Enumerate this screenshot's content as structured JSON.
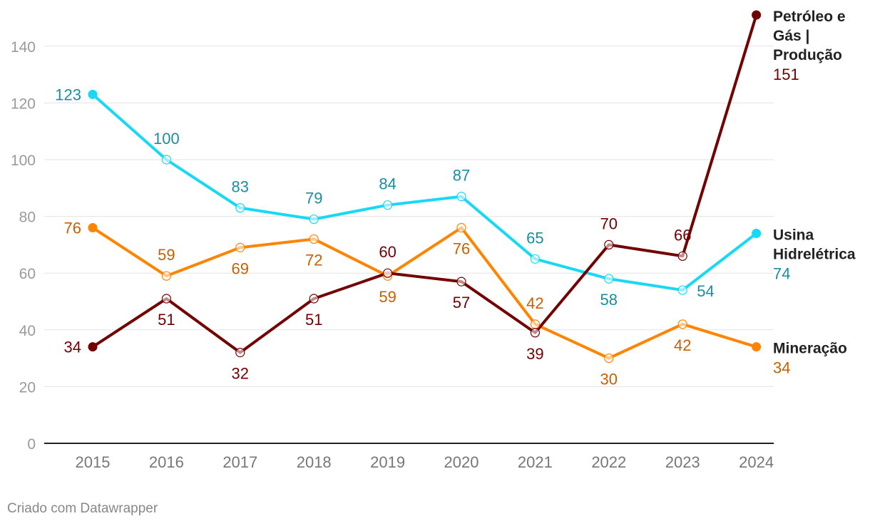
{
  "chart_data": {
    "type": "line",
    "title": "",
    "xlabel": "",
    "ylabel": "",
    "ylim": [
      0,
      150
    ],
    "yticks": [
      0,
      20,
      40,
      60,
      80,
      100,
      120,
      140
    ],
    "categories": [
      "2015",
      "2016",
      "2017",
      "2018",
      "2019",
      "2020",
      "2021",
      "2022",
      "2023",
      "2024"
    ],
    "grid": true,
    "series": [
      {
        "key": "hidro",
        "name": "Usina Hidrelétrica",
        "name_lines": [
          "Usina",
          "Hidrelétrica"
        ],
        "color": "#18d9f5",
        "label_color": "#1a8ea0",
        "values": [
          123,
          100,
          83,
          79,
          84,
          87,
          65,
          58,
          54,
          74
        ],
        "label_pos": [
          "left",
          "above",
          "above",
          "above",
          "above",
          "above",
          "above",
          "below",
          "right",
          "end"
        ]
      },
      {
        "key": "mineracao",
        "name": "Mineração",
        "name_lines": [
          "Mineração"
        ],
        "color": "#ff8400",
        "label_color": "#c95f00",
        "values": [
          76,
          59,
          69,
          72,
          59,
          76,
          42,
          30,
          42,
          34
        ],
        "label_pos": [
          "left",
          "above",
          "below",
          "below",
          "below",
          "below",
          "above",
          "below",
          "below",
          "end"
        ]
      },
      {
        "key": "petroleo",
        "name": "Petróleo e Gás | Produção",
        "name_lines": [
          "Petróleo e",
          "Gás |",
          "Produção"
        ],
        "color": "#720000",
        "label_color": "#720000",
        "values": [
          34,
          51,
          32,
          51,
          60,
          57,
          39,
          70,
          66,
          151
        ],
        "label_pos": [
          "left",
          "below",
          "below",
          "below",
          "above",
          "below",
          "below",
          "above",
          "above",
          "end"
        ]
      }
    ]
  },
  "footer": "Criado com Datawrapper"
}
